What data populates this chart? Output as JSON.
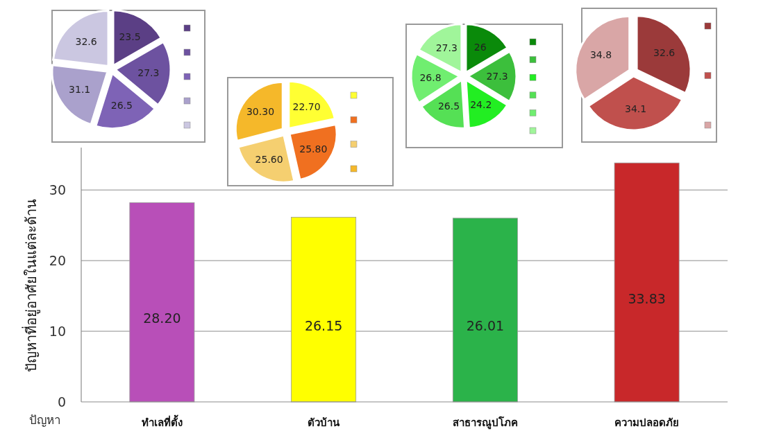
{
  "chart_data": [
    {
      "type": "pie",
      "categories": [
        null,
        null,
        null,
        null,
        null
      ],
      "values": [
        23.5,
        27.3,
        26.5,
        31.1,
        32.6
      ],
      "colors": [
        "#5b3f85",
        "#6d52a0",
        "#7e63b6",
        "#aaa1cc",
        "#cbc7e1"
      ],
      "data_labels": true
    },
    {
      "type": "pie",
      "categories": [
        null,
        null,
        null,
        null
      ],
      "values": [
        22.7,
        25.8,
        25.6,
        30.3
      ],
      "value_labels": [
        "22.70",
        "25.80",
        "25.60",
        "30.30"
      ],
      "colors": [
        "#ffff33",
        "#f07020",
        "#f5cf70",
        "#f5b82a"
      ]
    },
    {
      "type": "pie",
      "categories": [
        null,
        null,
        null,
        null,
        null,
        null
      ],
      "values": [
        26,
        27.3,
        24.2,
        26.5,
        26.8,
        27.3
      ],
      "colors": [
        "#0a8a0a",
        "#3cbf3c",
        "#22ee22",
        "#55e055",
        "#70ee70",
        "#a0f59a"
      ],
      "data_labels": true
    },
    {
      "type": "pie",
      "categories": [
        null,
        null,
        null
      ],
      "values": [
        32.6,
        34.1,
        34.8
      ],
      "colors": [
        "#9b3a3a",
        "#c0504d",
        "#d9a6a6"
      ],
      "data_labels": true
    },
    {
      "type": "bar",
      "xlabel": "ปัญหา",
      "ylabel": "ปัญหาที่อยู่อาศัยในแต่ละด้าน",
      "categories": [
        "ทำเลที่ตั้ง",
        "ตัวบ้าน",
        "สาธารณูปโภค",
        "ความปลอดภัย"
      ],
      "values": [
        28.2,
        26.15,
        26.01,
        33.83
      ],
      "value_labels": [
        "28.20",
        "26.15",
        "26.01",
        "33.83"
      ],
      "colors": [
        "#b84fb8",
        "#ffff00",
        "#2bb34a",
        "#c8282a"
      ],
      "ylim": [
        0,
        36
      ],
      "yticks": [
        0,
        10,
        20,
        30
      ],
      "grid": "y"
    }
  ]
}
